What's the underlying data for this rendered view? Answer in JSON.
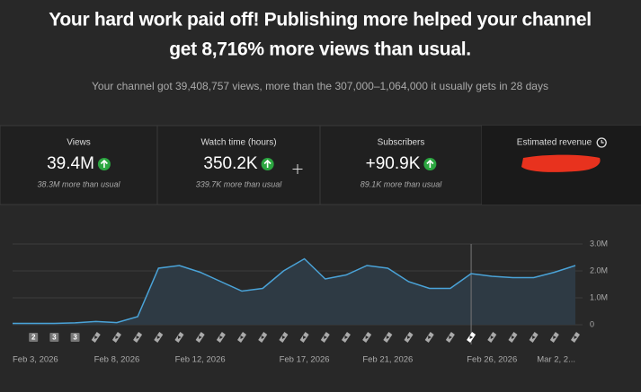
{
  "header": {
    "title_line1": "Your hard work paid off! Publishing more helped your channel",
    "title_line2": "get 8,716% more views than usual.",
    "subtitle": "Your channel got 39,408,757 views, more than the 307,000–1,064,000 it usually gets in 28 days"
  },
  "metrics": [
    {
      "label": "Views",
      "value": "39.4M",
      "note": "38.3M more than usual"
    },
    {
      "label": "Watch time (hours)",
      "value": "350.2K",
      "note": "339.7K more than usual"
    },
    {
      "label": "Subscribers",
      "value": "+90.9K",
      "note": "89.1K more than usual"
    },
    {
      "label": "Estimated revenue"
    }
  ],
  "video_markers": [
    "2",
    "3",
    "3"
  ],
  "chart_data": {
    "type": "area",
    "color": "#4aa3d8",
    "categories": [
      "Feb 3, 2026",
      null,
      null,
      null,
      null,
      "Feb 8, 2026",
      null,
      null,
      null,
      "Feb 12, 2026",
      null,
      null,
      null,
      null,
      "Feb 17, 2026",
      null,
      null,
      null,
      "Feb 21, 2026",
      null,
      null,
      null,
      null,
      "Feb 26, 2026",
      null,
      null,
      null,
      "Mar 2, 2..."
    ],
    "values": [
      50000,
      50000,
      50000,
      70000,
      120000,
      80000,
      300000,
      2100000,
      2200000,
      1950000,
      1600000,
      1250000,
      1350000,
      2000000,
      2450000,
      1700000,
      1850000,
      2200000,
      2100000,
      1600000,
      1350000,
      1350000,
      1900000,
      1800000,
      1750000,
      1750000,
      1950000,
      2200000
    ],
    "ylim": [
      0,
      3000000
    ],
    "yticks": [
      0,
      {
        "value": 1000000,
        "label": "1.0M"
      },
      {
        "value": 2000000,
        "label": "2.0M"
      },
      {
        "value": 3000000,
        "label": "3.0M"
      }
    ],
    "grid": true
  }
}
